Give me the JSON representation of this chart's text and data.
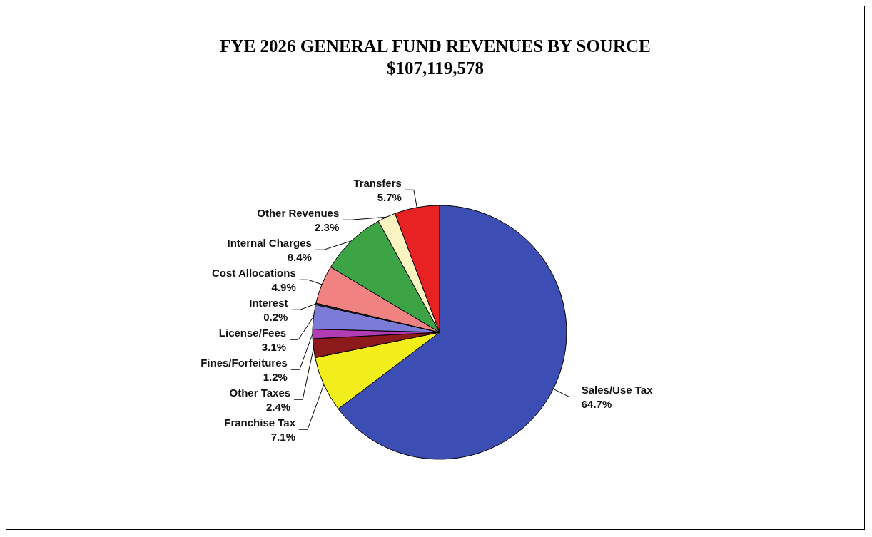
{
  "chart_data": {
    "type": "pie",
    "title": "FYE 2026 GENERAL FUND REVENUES BY SOURCE",
    "subtitle": "$107,119,578",
    "categories": [
      "Sales/Use Tax",
      "Franchise Tax",
      "Other Taxes",
      "Fines/Forfeitures",
      "License/Fees",
      "Interest",
      "Cost Allocations",
      "Internal Charges",
      "Other Revenues",
      "Transfers"
    ],
    "values": [
      64.7,
      7.1,
      2.4,
      1.2,
      3.1,
      0.2,
      4.9,
      8.4,
      2.3,
      5.7
    ],
    "value_labels": [
      "64.7%",
      "7.1%",
      "2.4%",
      "1.2%",
      "3.1%",
      "0.2%",
      "4.9%",
      "8.4%",
      "2.3%",
      "5.7%"
    ],
    "colors": [
      "#3c4db4",
      "#f2ee1c",
      "#8c1a1a",
      "#b23cb4",
      "#7c7cd8",
      "#303030",
      "#f08282",
      "#3ca444",
      "#faf5c0",
      "#e82222"
    ],
    "legend": false
  }
}
